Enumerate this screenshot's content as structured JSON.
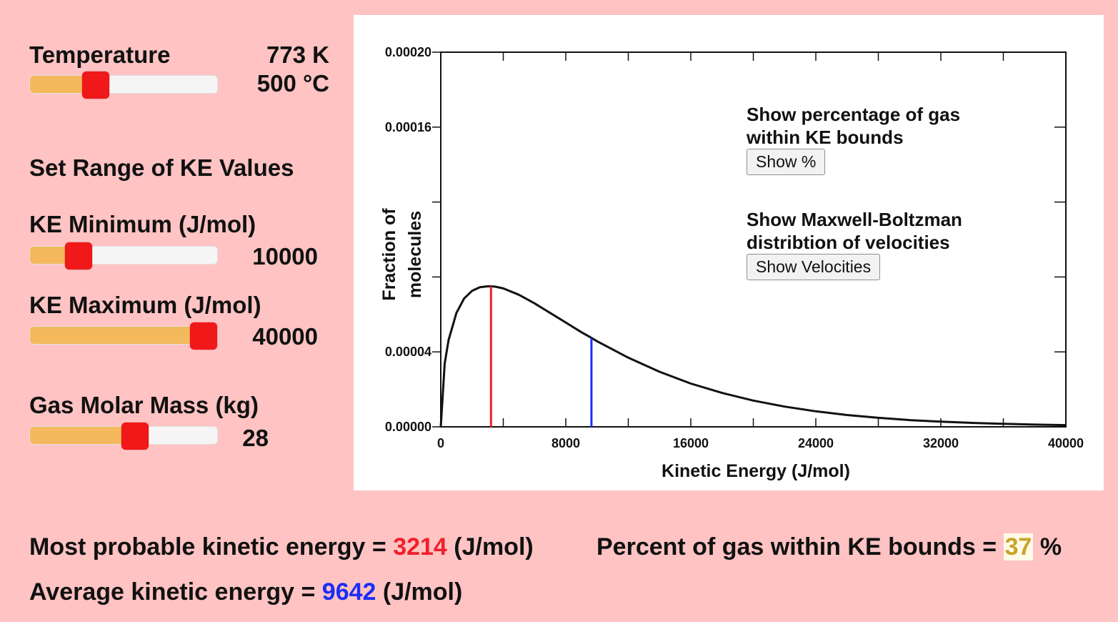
{
  "controls": {
    "temperature": {
      "label": "Temperature",
      "kelvin": "773  K",
      "celsius": "500 °C",
      "level": 0.35
    },
    "range_heading": "Set Range of KE Values",
    "ke_min": {
      "label": "KE Minimum (J/mol)",
      "value": "10000",
      "level": 0.26
    },
    "ke_max": {
      "label": "KE Maximum (J/mol)",
      "value": "40000",
      "level": 1.0
    },
    "molar_mass": {
      "label": "Gas Molar Mass (kg)",
      "value": "28",
      "level": 0.56
    }
  },
  "chart_overlay": {
    "percent_note_line1": "Show percentage of gas",
    "percent_note_line2": "within KE bounds",
    "percent_button": "Show %",
    "velocity_note_line1": "Show Maxwell-Boltzman",
    "velocity_note_line2": "distribtion of velocities",
    "velocity_button": "Show Velocities"
  },
  "results": {
    "most_probable_prefix": "Most probable kinetic energy = ",
    "most_probable_value": "3214",
    "most_probable_unit": " (J/mol)",
    "average_prefix": "Average kinetic energy = ",
    "average_value": "9642",
    "average_unit": " (J/mol)",
    "percent_prefix": "Percent of gas within KE bounds = ",
    "percent_value": "37",
    "percent_unit": " %"
  },
  "colors": {
    "background": "#ffc3c3",
    "slider_fill": "#f3b95c",
    "slider_thumb": "#f01818",
    "most_probable_line": "#f0202a",
    "average_line": "#1a2ef5",
    "curve": "#111111"
  },
  "chart_data": {
    "type": "line",
    "xlabel": "Kinetic Energy (J/mol)",
    "ylabel": "Fraction of molecules",
    "xlim": [
      0,
      40000
    ],
    "ylim": [
      0,
      0.0002
    ],
    "x_ticks": [
      0,
      8000,
      16000,
      24000,
      32000,
      40000
    ],
    "x_tick_labels": [
      "0",
      "8000",
      "16000",
      "24000",
      "32000",
      "40000"
    ],
    "y_ticks": [
      0,
      4e-05,
      8e-05,
      0.00012,
      0.00016,
      0.0002
    ],
    "y_tick_labels": [
      "0.00000",
      "0.00004",
      "",
      "",
      "0.00016",
      "0.00020"
    ],
    "series": [
      {
        "x": [
          0,
          250,
          500,
          1000,
          1500,
          2000,
          2500,
          3000,
          3214,
          3500,
          4000,
          5000,
          6000,
          7000,
          8000,
          9000,
          9642,
          10000,
          12000,
          14000,
          16000,
          18000,
          20000,
          22000,
          24000,
          26000,
          28000,
          30000,
          32000,
          34000,
          36000,
          38000,
          40000
        ],
        "y": [
          0,
          3.38e-05,
          4.63e-05,
          6.08e-05,
          6.86e-05,
          7.26e-05,
          7.45e-05,
          7.5e-05,
          7.5e-05,
          7.48e-05,
          7.39e-05,
          7.05e-05,
          6.59e-05,
          6.08e-05,
          5.57e-05,
          5.05e-05,
          4.75e-05,
          4.57e-05,
          3.69e-05,
          2.94e-05,
          2.31e-05,
          1.81e-05,
          1.4e-05,
          1.08e-05,
          8.3e-06,
          6.3e-06,
          4.8e-06,
          3.6e-06,
          2.8e-06,
          2.1e-06,
          1.6e-06,
          1.2e-06,
          9e-07
        ]
      }
    ],
    "markers": [
      {
        "x": 3214,
        "y": 7.5e-05,
        "color": "#f0202a"
      },
      {
        "x": 9642,
        "y": 4.75e-05,
        "color": "#1a2ef5"
      }
    ]
  }
}
